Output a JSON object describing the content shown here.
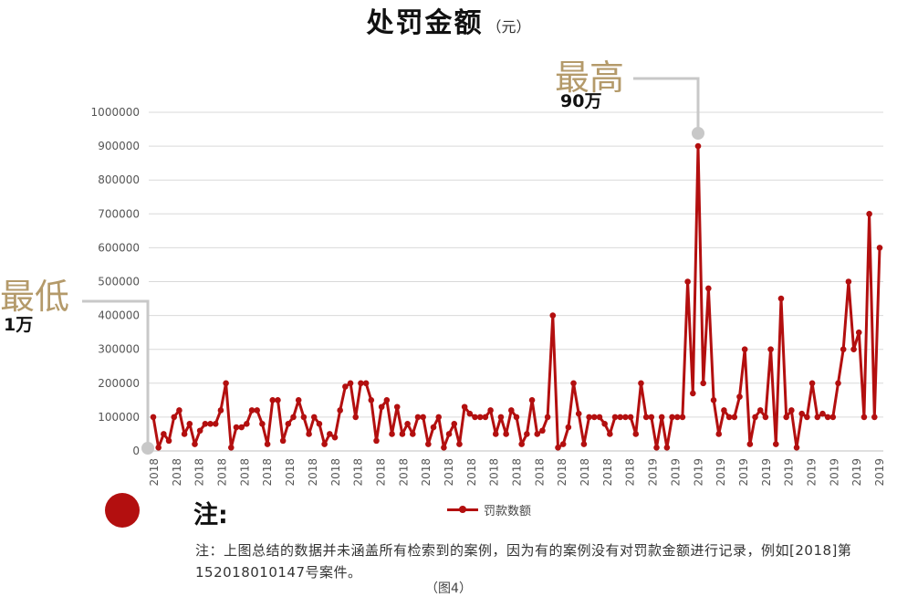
{
  "title": {
    "main": "处罚金额",
    "unit": "（元）"
  },
  "callouts": {
    "max": {
      "label": "最高",
      "value": "90万"
    },
    "min": {
      "label": "最低",
      "value": "1万"
    }
  },
  "note": {
    "heading": "注:",
    "text": "注：上图总结的数据并未涵盖所有检索到的案例，因为有的案例没有对罚款金额进行记录，例如[2018]第152018010147号案件。"
  },
  "figure_label": "（图4）",
  "colors": {
    "series": "#b30f0f",
    "callout_text": "#b49a6a",
    "grid": "#d9d9d9",
    "callout_line": "#c8c8c8"
  },
  "chart_data": {
    "type": "line",
    "ylim": [
      0,
      1000000
    ],
    "yticks": [
      0,
      100000,
      200000,
      300000,
      400000,
      500000,
      600000,
      700000,
      800000,
      900000,
      1000000
    ],
    "x_labels": [
      "2018",
      "2018",
      "2018",
      "2018",
      "2018",
      "2018",
      "2018",
      "2018",
      "2018",
      "2018",
      "2018",
      "2018",
      "2018",
      "2018",
      "2018",
      "2018",
      "2018",
      "2018",
      "2018",
      "2018",
      "2018",
      "2018",
      "2019",
      "2019",
      "2019",
      "2019",
      "2019",
      "2019",
      "2019",
      "2019",
      "2019",
      "2019",
      "2019"
    ],
    "grid": true,
    "legend_position": "bottom",
    "series": [
      {
        "name": "罚款数额",
        "values": [
          100000,
          10000,
          50000,
          30000,
          100000,
          120000,
          50000,
          80000,
          20000,
          60000,
          80000,
          80000,
          80000,
          120000,
          200000,
          10000,
          70000,
          70000,
          80000,
          120000,
          120000,
          80000,
          20000,
          150000,
          150000,
          30000,
          80000,
          100000,
          150000,
          100000,
          50000,
          100000,
          80000,
          20000,
          50000,
          40000,
          120000,
          190000,
          200000,
          100000,
          200000,
          200000,
          150000,
          30000,
          130000,
          150000,
          50000,
          130000,
          50000,
          80000,
          50000,
          100000,
          100000,
          20000,
          70000,
          100000,
          10000,
          50000,
          80000,
          20000,
          130000,
          110000,
          100000,
          100000,
          100000,
          120000,
          50000,
          100000,
          50000,
          120000,
          100000,
          20000,
          50000,
          150000,
          50000,
          60000,
          100000,
          400000,
          10000,
          20000,
          70000,
          200000,
          110000,
          20000,
          100000,
          100000,
          100000,
          80000,
          50000,
          100000,
          100000,
          100000,
          100000,
          50000,
          200000,
          100000,
          100000,
          10000,
          100000,
          10000,
          100000,
          100000,
          100000,
          500000,
          170000,
          900000,
          200000,
          480000,
          150000,
          50000,
          120000,
          100000,
          100000,
          160000,
          300000,
          20000,
          100000,
          120000,
          100000,
          300000,
          20000,
          450000,
          100000,
          120000,
          10000,
          110000,
          100000,
          200000,
          100000,
          110000,
          100000,
          100000,
          200000,
          300000,
          500000,
          300000,
          350000,
          100000,
          700000,
          100000,
          600000
        ]
      }
    ]
  }
}
